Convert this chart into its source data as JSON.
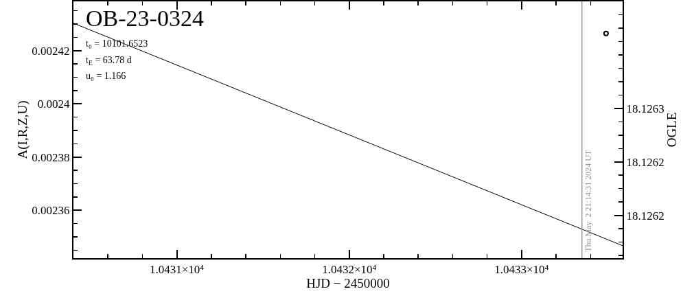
{
  "chart_data": {
    "type": "line",
    "title": "OB-23-0324",
    "xlabel": "HJD − 2450000",
    "ylabel": "A(I,R,Z,U)",
    "y2label": "OGLE",
    "annotations": [
      "t₀ = 10101.6523",
      "t$_{E}$ = 63.78 d",
      "u₀ = 1.166",
      {
        "text": "Thu May  2 21:14:31 2024 UT",
        "x": 10433.35
      }
    ],
    "xlim": [
      10430.4,
      10433.586
    ],
    "xticks": [
      {
        "value": 10431,
        "label": "1.0431×10⁴"
      },
      {
        "value": 10432,
        "label": "1.0432×10⁴"
      },
      {
        "value": 10433,
        "label": "1.0433×10⁴"
      }
    ],
    "ylim": [
      0.002342,
      0.0024385
    ],
    "yticks": [
      0.00236,
      0.00238,
      0.0024,
      0.00242
    ],
    "y2lim": [
      18.12611,
      18.12635
    ],
    "y2ticks": [
      {
        "value": 18.12615,
        "label": "18.1262"
      },
      {
        "value": 18.1262,
        "label": "18.1262"
      },
      {
        "value": 18.12625,
        "label": "18.1263"
      }
    ],
    "series": [
      {
        "color": "#000000",
        "x": [
          10430.4,
          10433.586
        ],
        "values": [
          0.0024303,
          0.0023467
        ]
      },
      {
        "type": "scatter",
        "axis": "y2",
        "marker": "circle",
        "color": "#000000",
        "x": [
          10433.49
        ],
        "values": [
          18.12632
        ]
      }
    ],
    "ref_lines": [
      {
        "axis": "x",
        "value": 10433.35,
        "color": "#999999"
      }
    ],
    "line_style": "solid"
  }
}
